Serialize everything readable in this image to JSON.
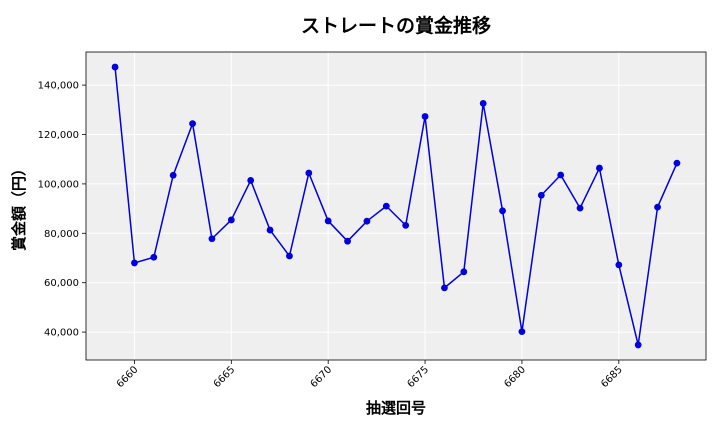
{
  "chart_data": {
    "type": "line",
    "title": "ストレートの賞金推移",
    "xlabel": "抽選回号",
    "ylabel": "賞金額（円）",
    "x": [
      6659,
      6660,
      6661,
      6662,
      6663,
      6664,
      6665,
      6666,
      6667,
      6668,
      6669,
      6670,
      6671,
      6672,
      6673,
      6674,
      6675,
      6676,
      6677,
      6678,
      6679,
      6680,
      6681,
      6682,
      6683,
      6684,
      6685,
      6686,
      6687,
      6688
    ],
    "series": [
      {
        "values": [
          147300,
          68000,
          70300,
          103500,
          124400,
          77800,
          85400,
          101400,
          81300,
          70800,
          104400,
          85000,
          76800,
          84900,
          91000,
          83200,
          127300,
          57900,
          64400,
          132600,
          89100,
          40200,
          95400,
          103600,
          90200,
          106400,
          67200,
          34800,
          90600,
          108400
        ],
        "color": "#0000dd"
      }
    ],
    "x_ticks": [
      6660,
      6665,
      6670,
      6675,
      6680,
      6685
    ],
    "x_tick_labels": [
      "6660",
      "6665",
      "6670",
      "6675",
      "6680",
      "6685"
    ],
    "y_ticks": [
      40000,
      60000,
      80000,
      100000,
      120000,
      140000
    ],
    "y_tick_labels": [
      "40,000",
      "60,000",
      "80,000",
      "100,000",
      "120,000",
      "140,000"
    ],
    "xlim": [
      6657.5,
      6689.5
    ],
    "ylim": [
      28700,
      153400
    ],
    "grid": true,
    "colors": {
      "plot_background": "#efefef",
      "grid": "#ffffff",
      "line": "#0000dd",
      "marker": "#0000dd",
      "text": "#000000"
    }
  }
}
